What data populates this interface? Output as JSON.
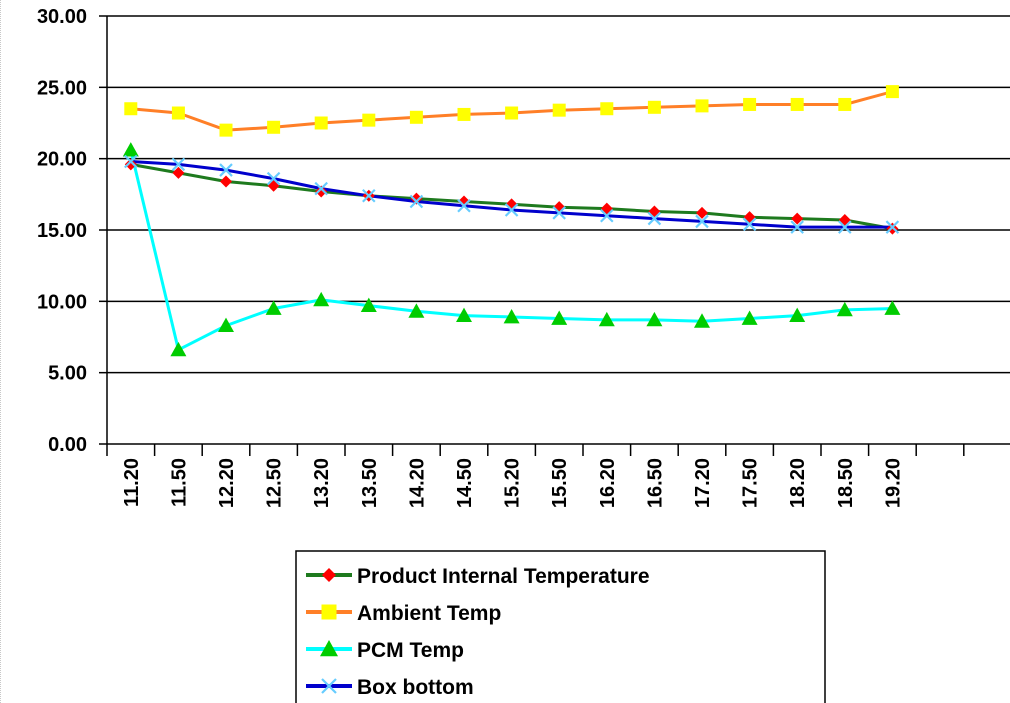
{
  "chart_data": {
    "type": "line",
    "title": "",
    "xlabel": "",
    "ylabel": "",
    "ylim": [
      0,
      30
    ],
    "yticks": [
      "0.00",
      "5.00",
      "10.00",
      "15.00",
      "20.00",
      "25.00",
      "30.00"
    ],
    "ytick_values": [
      0,
      5,
      10,
      15,
      20,
      25,
      30
    ],
    "grid": true,
    "legend_position": "bottom",
    "categories": [
      "11.20",
      "11.50",
      "12.20",
      "12.50",
      "13.20",
      "13.50",
      "14.20",
      "14.50",
      "15.20",
      "15.50",
      "16.20",
      "16.50",
      "17.20",
      "17.50",
      "18.20",
      "18.50",
      "19.20"
    ],
    "series": [
      {
        "name": "Product Internal Temperature",
        "line_color": "#1e7a1e",
        "marker": "diamond",
        "marker_color": "#ff0000",
        "values": [
          19.6,
          19.0,
          18.4,
          18.1,
          17.7,
          17.4,
          17.2,
          17.0,
          16.8,
          16.6,
          16.5,
          16.3,
          16.2,
          15.9,
          15.8,
          15.7,
          15.1
        ]
      },
      {
        "name": "Ambient Temp",
        "line_color": "#ff7f27",
        "marker": "square",
        "marker_color": "#ffff00",
        "values": [
          23.5,
          23.2,
          22.0,
          22.2,
          22.5,
          22.7,
          22.9,
          23.1,
          23.2,
          23.4,
          23.5,
          23.6,
          23.7,
          23.8,
          23.8,
          23.8,
          24.7
        ]
      },
      {
        "name": "PCM Temp",
        "line_color": "#00ffff",
        "marker": "triangle",
        "marker_color": "#00cc00",
        "values": [
          20.6,
          6.6,
          8.3,
          9.5,
          10.1,
          9.7,
          9.3,
          9.0,
          8.9,
          8.8,
          8.7,
          8.7,
          8.6,
          8.8,
          9.0,
          9.4,
          9.5
        ]
      },
      {
        "name": "Box bottom",
        "line_color": "#0000cc",
        "marker": "x",
        "marker_color": "#66ccff",
        "values": [
          19.8,
          19.6,
          19.2,
          18.6,
          17.9,
          17.4,
          17.0,
          16.7,
          16.4,
          16.2,
          16.0,
          15.8,
          15.6,
          15.4,
          15.2,
          15.2,
          15.2
        ]
      }
    ]
  }
}
